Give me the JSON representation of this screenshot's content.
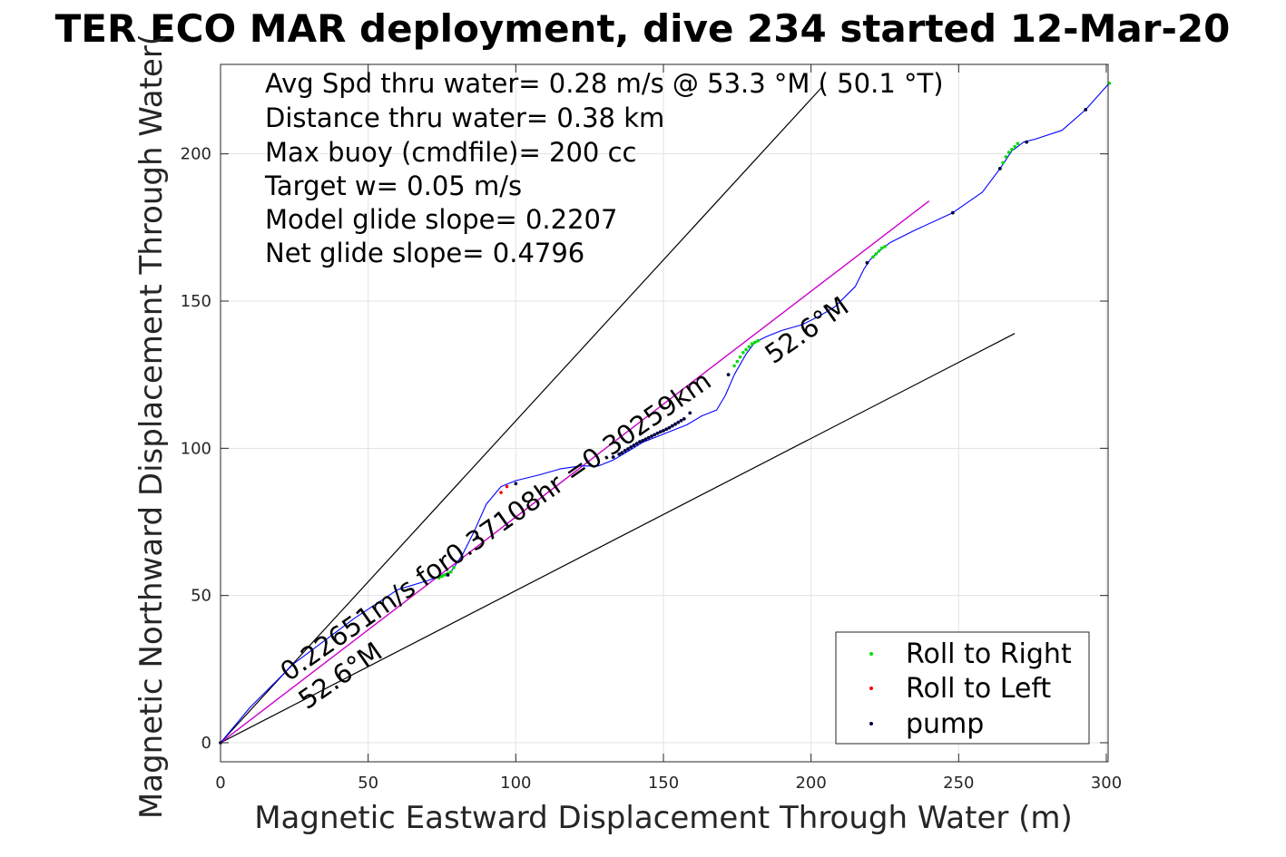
{
  "chart_data": {
    "type": "line",
    "title": "TER ECO MAR deployment, dive 234 started 12-Mar-20",
    "xlabel": "Magnetic Eastward Displacement Through Water (m)",
    "ylabel": "Magnetic Northward Displacement Through Water(",
    "xlim": [
      0,
      300
    ],
    "ylim": [
      -6,
      231
    ],
    "xticks": [
      "0",
      "50",
      "100",
      "150",
      "200",
      "250",
      "300"
    ],
    "yticks": [
      "0",
      "50",
      "100",
      "150",
      "200"
    ],
    "grid": true,
    "info_lines": [
      "Avg Spd thru water=  0.28 m/s @  53.3 °M ( 50.1 °T)",
      "Distance thru water=  0.38 km",
      "Max buoy (cmdfile)= 200 cc",
      "Target w= 0.05 m/s",
      "Model glide slope= 0.2207",
      "Net glide slope= 0.4796"
    ],
    "annotations": [
      "0.22651m/s for0.37108hr =0.30259km",
      "52.6°M",
      "52.6°M"
    ],
    "legend": {
      "placement": "bottom-right",
      "entries": [
        {
          "label": "Roll to Right",
          "color": "#00dd00"
        },
        {
          "label": "Roll to Left",
          "color": "#ff0000"
        },
        {
          "label": "pump",
          "color": "#000040"
        }
      ]
    },
    "colors": {
      "track": "#0000ff",
      "heading_line": "#cc00cc",
      "envelope": "#000000"
    },
    "track": {
      "x": [
        0,
        10,
        25,
        45,
        60,
        70,
        78,
        82,
        86,
        90,
        95,
        100,
        108,
        115,
        122,
        128,
        133,
        138,
        143,
        148,
        153,
        158,
        163,
        168,
        171,
        174,
        178,
        181,
        185,
        190,
        197,
        203,
        208,
        215,
        218,
        220,
        223,
        227,
        235,
        248,
        258,
        264,
        268,
        272,
        276,
        285,
        293,
        301
      ],
      "y": [
        0,
        12,
        27,
        42,
        52,
        55,
        58,
        64,
        72,
        81,
        87,
        89,
        91,
        93,
        94,
        94,
        96,
        99,
        102,
        104,
        106,
        108,
        111,
        113,
        118,
        125,
        132,
        136,
        138,
        140,
        142,
        145,
        148,
        155,
        161,
        164,
        167,
        170,
        174,
        180,
        187,
        195,
        201,
        204,
        205,
        208,
        215,
        224
      ]
    },
    "roll_right": {
      "x": [
        74,
        75,
        76,
        77,
        78,
        79,
        174,
        175,
        176,
        177,
        178,
        179,
        180,
        181,
        182,
        221,
        222,
        223,
        224,
        225,
        264,
        265,
        266,
        267,
        268,
        269,
        270,
        301
      ],
      "y": [
        56,
        56.5,
        57,
        57.5,
        58,
        59.5,
        128,
        129.5,
        131,
        132.5,
        133.5,
        134.5,
        135.5,
        136,
        136.5,
        165,
        166,
        167,
        168,
        168.5,
        195,
        197,
        199,
        200.5,
        201.5,
        202.5,
        203.5,
        224
      ]
    },
    "roll_left": {
      "x": [
        95,
        97
      ],
      "y": [
        85,
        87
      ]
    },
    "pump": {
      "x": [
        0,
        77,
        87,
        100,
        133,
        135,
        136,
        137,
        138,
        139,
        140,
        141,
        142,
        143,
        144,
        145,
        146,
        147,
        148,
        149,
        150,
        151,
        152,
        153,
        154,
        155,
        156,
        157,
        159,
        172,
        219,
        248,
        264,
        273,
        293
      ],
      "y": [
        0,
        57,
        70,
        88,
        97,
        98,
        98.5,
        99.2,
        99.8,
        100.4,
        101,
        101.6,
        102.2,
        102.6,
        103.1,
        103.6,
        104.1,
        104.6,
        105.1,
        105.6,
        106,
        106.5,
        107,
        107.6,
        108.2,
        108.8,
        109.4,
        110,
        112,
        125,
        163,
        180,
        195,
        204,
        215
      ]
    },
    "heading_line": {
      "x": [
        0,
        240
      ],
      "y": [
        0,
        184
      ]
    },
    "envelope_lines": [
      {
        "x": [
          0,
          204
        ],
        "y": [
          0,
          223
        ]
      },
      {
        "x": [
          0,
          269
        ],
        "y": [
          0,
          139
        ]
      }
    ]
  }
}
